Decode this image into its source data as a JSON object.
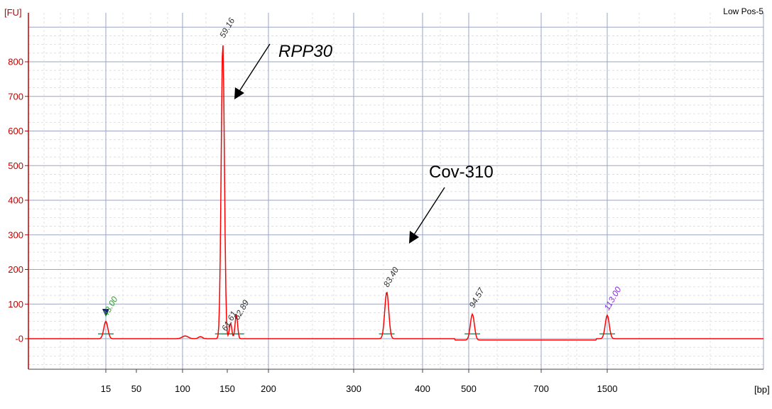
{
  "chart_data": {
    "type": "line",
    "title": "Low Pos-5",
    "y_unit": "[FU]",
    "x_unit": "[bp]",
    "ylim": [
      -90,
      900
    ],
    "y_ticks": [
      "-0",
      "100",
      "200",
      "300",
      "400",
      "500",
      "600",
      "700",
      "800"
    ],
    "x_ticks": [
      "15",
      "50",
      "100",
      "150",
      "200",
      "300",
      "400",
      "500",
      "700",
      "1500"
    ],
    "grid": true,
    "series": [
      {
        "color": "#ff0000",
        "peaks": [
          {
            "size_bp": 15,
            "height_fu": 50,
            "label": "43.00",
            "label_color": "#2e9e2e"
          },
          {
            "size_bp": 145,
            "height_fu": 855,
            "label": "59.16",
            "label_color": "#333333"
          },
          {
            "size_bp": 154,
            "height_fu": 45,
            "label": "61.61",
            "label_color": "#333333"
          },
          {
            "size_bp": 161,
            "height_fu": 70,
            "label": "62.89",
            "label_color": "#333333"
          },
          {
            "size_bp": 348,
            "height_fu": 135,
            "label": "83.40",
            "label_color": "#333333"
          },
          {
            "size_bp": 510,
            "height_fu": 75,
            "label": "94.57",
            "label_color": "#333333"
          },
          {
            "size_bp": 1500,
            "height_fu": 68,
            "label": "113.00",
            "label_color": "#8a2be2"
          }
        ]
      }
    ],
    "annotations": [
      {
        "text": "RPP30",
        "style": "italic"
      },
      {
        "text": "Cov-310",
        "style": "normal"
      }
    ]
  }
}
